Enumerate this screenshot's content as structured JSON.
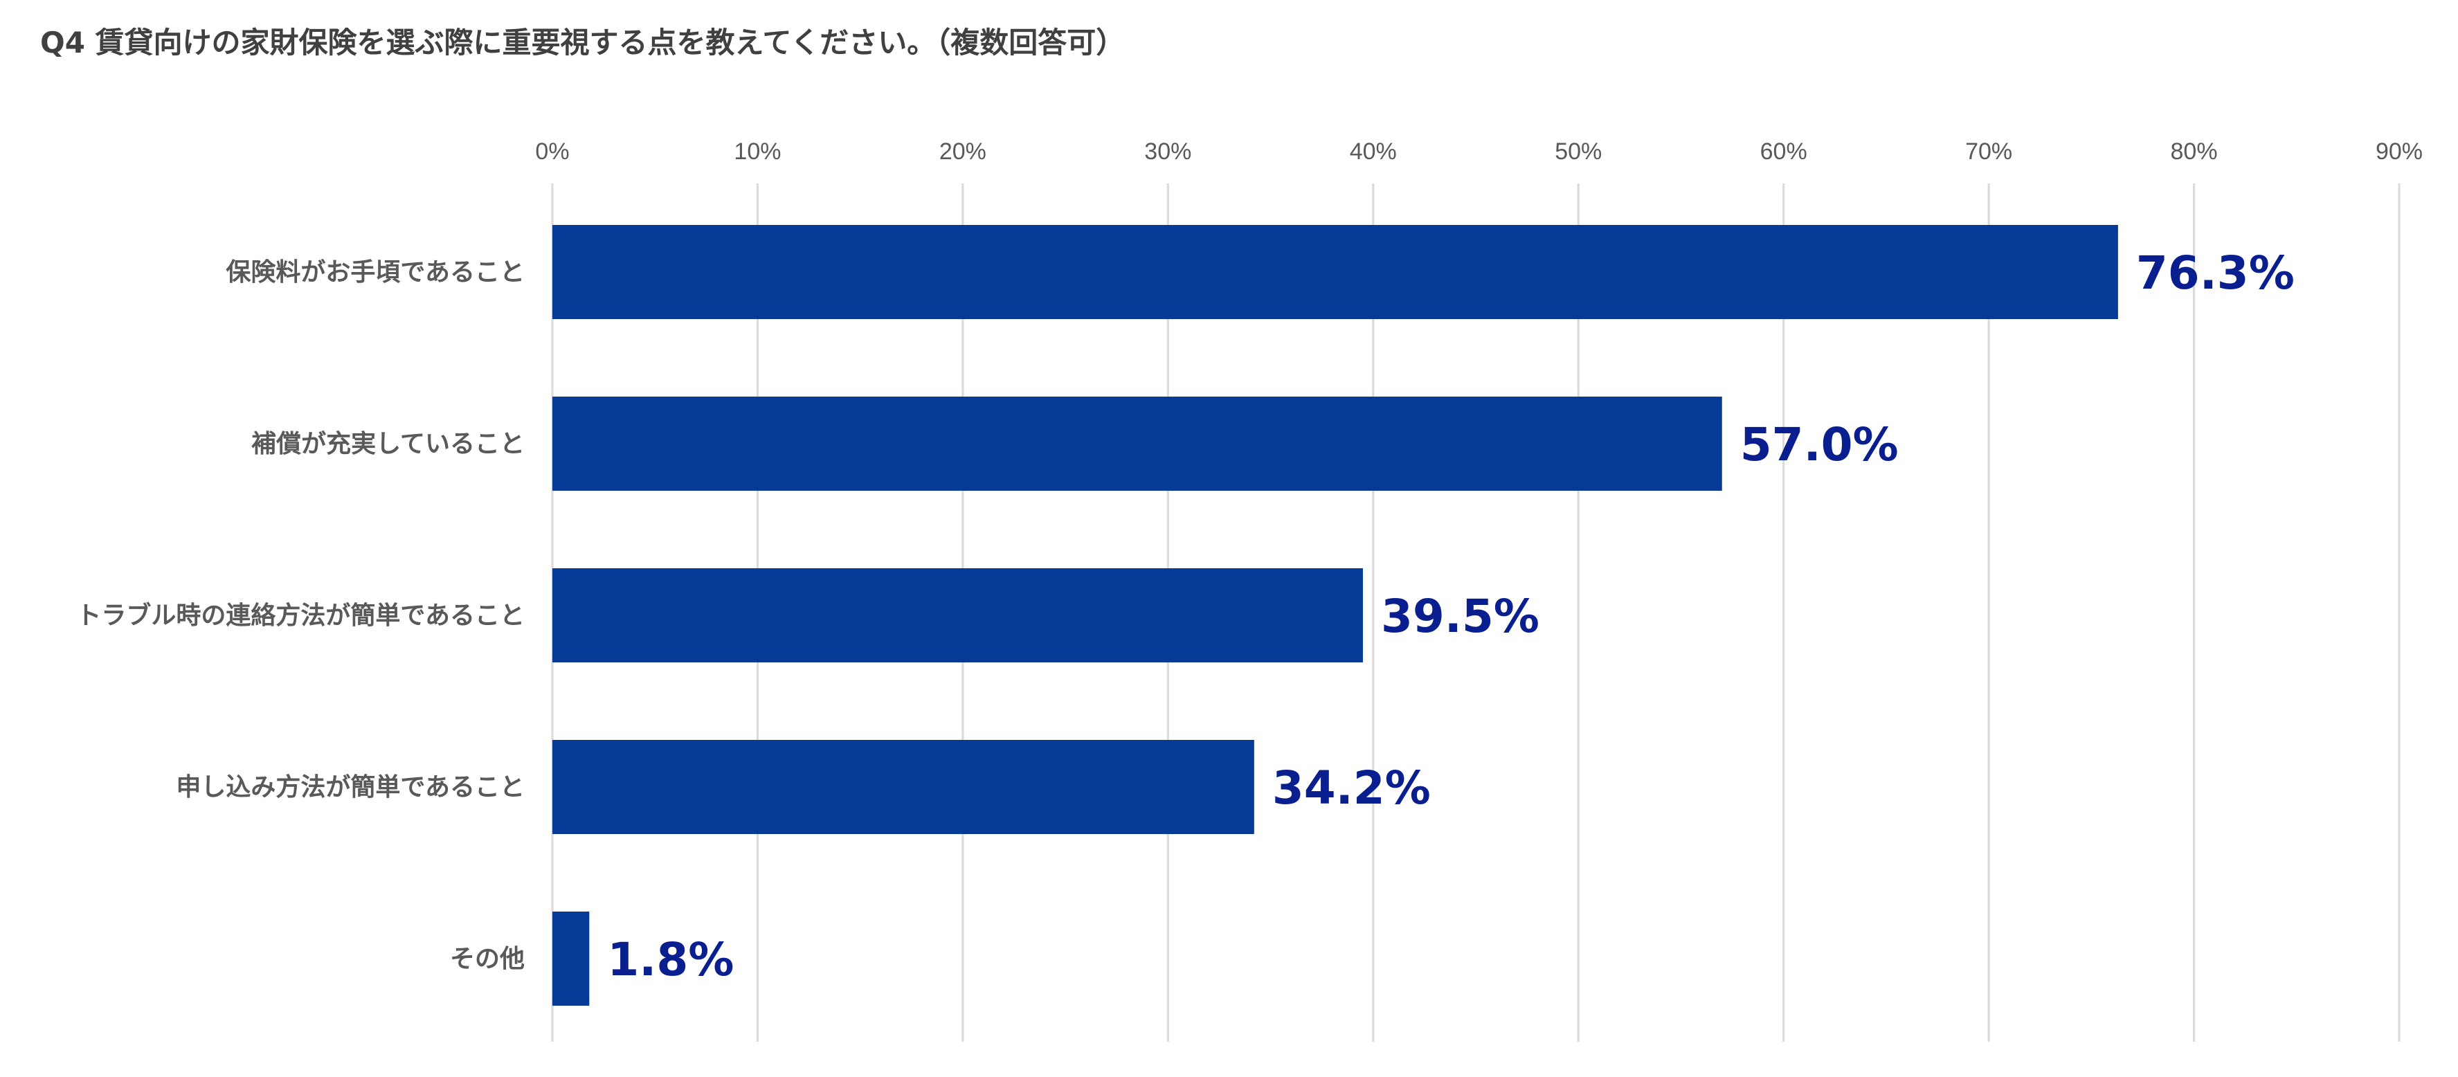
{
  "chart_data": {
    "type": "bar",
    "orientation": "horizontal",
    "title": "Q4 賃貸向けの家財保険を選ぶ際に重要視する点を教えてください。（複数回答可）",
    "categories": [
      "保険料がお手頃であること",
      "補償が充実していること",
      "トラブル時の連絡方法が簡単であること",
      "申し込み方法が簡単であること",
      "その他"
    ],
    "values": [
      76.3,
      57.0,
      39.5,
      34.2,
      1.8
    ],
    "value_labels": [
      "76.3%",
      "57.0%",
      "39.5%",
      "34.2%",
      "1.8%"
    ],
    "xlim": [
      0,
      90
    ],
    "xticks": [
      "0%",
      "10%",
      "20%",
      "30%",
      "40%",
      "50%",
      "60%",
      "70%",
      "80%",
      "90%"
    ],
    "xlabel": "",
    "ylabel": "",
    "grid": true,
    "axis_position": "top",
    "colors": {
      "bar": "#063a96",
      "label": "#0a1f8f",
      "grid": "#d9d9d9",
      "text": "#595959"
    }
  }
}
